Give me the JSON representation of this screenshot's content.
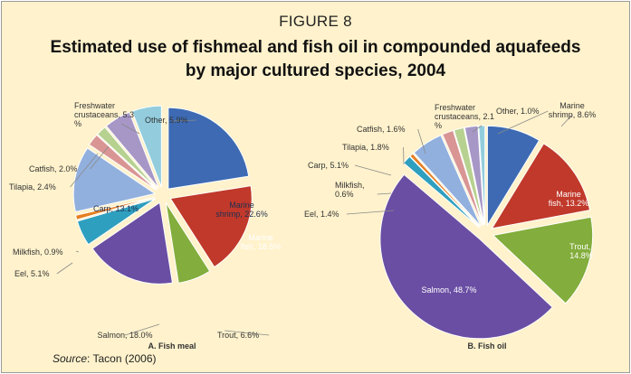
{
  "figure": {
    "label": "FIGURE 8",
    "title_line1": "Estimated use of fishmeal and fish oil in compounded aquafeeds",
    "title_line2": "by major cultured species, 2004"
  },
  "source": {
    "prefix": "Source",
    "text": ": Tacon (2006)"
  },
  "chart_data": [
    {
      "type": "pie",
      "title": "A. Fish meal",
      "slices": [
        {
          "label_lines": [
            "Marine",
            "shrimp, 22.6%"
          ],
          "value": 22.6,
          "color": "#3d6ab3"
        },
        {
          "label_lines": [
            "Marine",
            "fish, 18.5%"
          ],
          "value": 18.5,
          "color": "#c0392b"
        },
        {
          "label_lines": [
            "Trout, 6.6%"
          ],
          "value": 6.6,
          "color": "#83ad3c"
        },
        {
          "label_lines": [
            "Salmon, 18.0%"
          ],
          "value": 18.0,
          "color": "#6a4ea3"
        },
        {
          "label_lines": [
            "Eel, 5.1%"
          ],
          "value": 5.1,
          "color": "#2f9fbf"
        },
        {
          "label_lines": [
            "Milkfish, 0.9%"
          ],
          "value": 0.9,
          "color": "#e67e22"
        },
        {
          "label_lines": [
            "Carp, 13.1%"
          ],
          "value": 13.1,
          "color": "#92b0de"
        },
        {
          "label_lines": [
            "Tilapia, 2.4%"
          ],
          "value": 2.4,
          "color": "#d99594"
        },
        {
          "label_lines": [
            "Catfish, 2.0%"
          ],
          "value": 2.0,
          "color": "#b7d190"
        },
        {
          "label_lines": [
            "Freshwater",
            "crustaceans, 5.3",
            "%"
          ],
          "value": 5.3,
          "color": "#a697c7"
        },
        {
          "label_lines": [
            "Other, 5.9%"
          ],
          "value": 5.9,
          "color": "#93cddd"
        }
      ]
    },
    {
      "type": "pie",
      "title": "B. Fish oil",
      "slices": [
        {
          "label_lines": [
            "Marine",
            "shrimp, 8.6%"
          ],
          "value": 8.6,
          "color": "#3d6ab3"
        },
        {
          "label_lines": [
            "Marine",
            "fish, 13.2%"
          ],
          "value": 13.2,
          "color": "#c0392b"
        },
        {
          "label_lines": [
            "Trout, ",
            "14.8%"
          ],
          "value": 14.8,
          "color": "#83ad3c"
        },
        {
          "label_lines": [
            "Salmon, 48.7%"
          ],
          "value": 48.7,
          "color": "#6a4ea3"
        },
        {
          "label_lines": [
            "Eel, 1.4%"
          ],
          "value": 1.4,
          "color": "#2f9fbf"
        },
        {
          "label_lines": [
            "Milkfish,",
            "0.6%"
          ],
          "value": 0.6,
          "color": "#e67e22"
        },
        {
          "label_lines": [
            "Carp, 5.1%"
          ],
          "value": 5.1,
          "color": "#92b0de"
        },
        {
          "label_lines": [
            "Tilapia, 1.8%"
          ],
          "value": 1.8,
          "color": "#d99594"
        },
        {
          "label_lines": [
            "Catfish, 1.6%"
          ],
          "value": 1.6,
          "color": "#b7d190"
        },
        {
          "label_lines": [
            "Freshwater",
            "crustaceans, 2.1",
            "%"
          ],
          "value": 2.1,
          "color": "#a697c7"
        },
        {
          "label_lines": [
            "Other, 1.0%"
          ],
          "value": 1.0,
          "color": "#93cddd"
        }
      ]
    }
  ]
}
